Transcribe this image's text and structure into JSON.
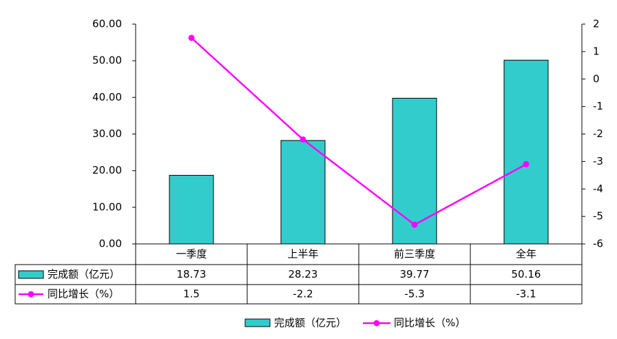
{
  "chart_data": {
    "type": "bar",
    "categories": [
      "一季度",
      "上半年",
      "前三季度",
      "全年"
    ],
    "series": [
      {
        "name": "完成额（亿元）",
        "type": "bar",
        "axis": "left",
        "values": [
          18.73,
          28.23,
          39.77,
          50.16
        ],
        "value_labels": [
          "18.73",
          "28.23",
          "39.77",
          "50.16"
        ],
        "color": "#33CCCC"
      },
      {
        "name": "同比增长（%）",
        "type": "line",
        "axis": "right",
        "values": [
          1.5,
          -2.2,
          -5.3,
          -3.1
        ],
        "value_labels": [
          "1.5",
          "-2.2",
          "-5.3",
          "-3.1"
        ],
        "color": "#FF00FF"
      }
    ],
    "ylim": [
      0,
      60
    ],
    "y_ticks": [
      "60.00",
      "50.00",
      "40.00",
      "30.00",
      "20.00",
      "10.00",
      "0.00"
    ],
    "y2lim": [
      -6,
      2
    ],
    "y2_ticks": [
      "2",
      "1",
      "0",
      "-1",
      "-2",
      "-3",
      "-4",
      "-5",
      "-6"
    ],
    "data_table": true,
    "legend": {
      "placement": "bottom",
      "labels": [
        "完成额（亿元）",
        "同比增长（%）"
      ]
    }
  }
}
